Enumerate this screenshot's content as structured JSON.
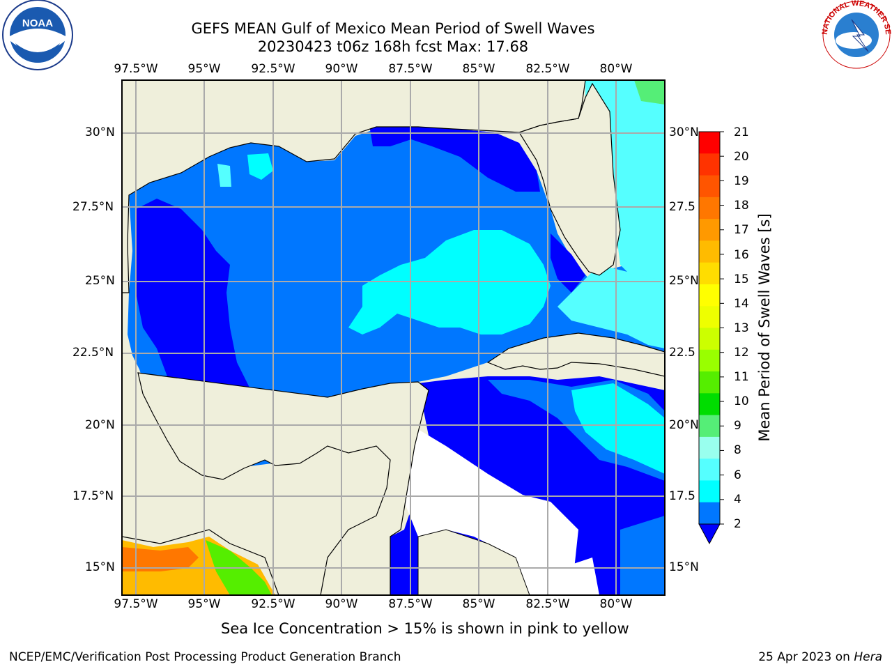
{
  "title_line1": "GEFS MEAN Gulf of Mexico Mean Period of Swell Waves",
  "title_line2": "20230423 t06z 168h fcst   Max: 17.68",
  "lon_labels": [
    "97.5°W",
    "95°W",
    "92.5°W",
    "90°W",
    "87.5°W",
    "85°W",
    "82.5°W",
    "80°W"
  ],
  "lat_labels_left": [
    "30°N",
    "27.5°N",
    "25°N",
    "22.5°N",
    "20°N",
    "17.5°N",
    "15°N"
  ],
  "lat_labels_right": [
    "30°N",
    "27.5",
    "25°N",
    "22.5",
    "20°N",
    "17.5",
    "15°N"
  ],
  "colorbar": {
    "label": "Mean Period of Swell Waves [s]",
    "ticks": [
      "21",
      "20",
      "19",
      "18",
      "17",
      "16",
      "15",
      "14",
      "13",
      "12",
      "11",
      "10",
      "9",
      "8",
      "6",
      "4",
      "2"
    ],
    "colors": [
      "#ff0000",
      "#ff3300",
      "#ff5500",
      "#ff7700",
      "#ff9900",
      "#ffbb00",
      "#ffdd00",
      "#ffff00",
      "#eeff00",
      "#ccff00",
      "#99ff00",
      "#55ee00",
      "#00dd00",
      "#55ee77",
      "#99ffee",
      "#55ffff",
      "#00ffff",
      "#0077ff"
    ],
    "extend_color": "#0000ff"
  },
  "colors": {
    "land": "#efefdb",
    "ocean_low": "#0000ff",
    "ocean_mid": "#0077ff",
    "ocean_cyan": "#00ffff",
    "ocean_lightcyan": "#55ffff",
    "grid": "#aaaaaa"
  },
  "note": "Sea Ice Concentration > 15% is shown in pink to yellow",
  "footer_left": "NCEP/EMC/Verification Post Processing Product Generation Branch",
  "footer_date": "25 Apr 2023 on ",
  "footer_machine": "Hera",
  "logo_left": "NOAA",
  "logo_right": "NATIONAL WEATHER SERVICE"
}
